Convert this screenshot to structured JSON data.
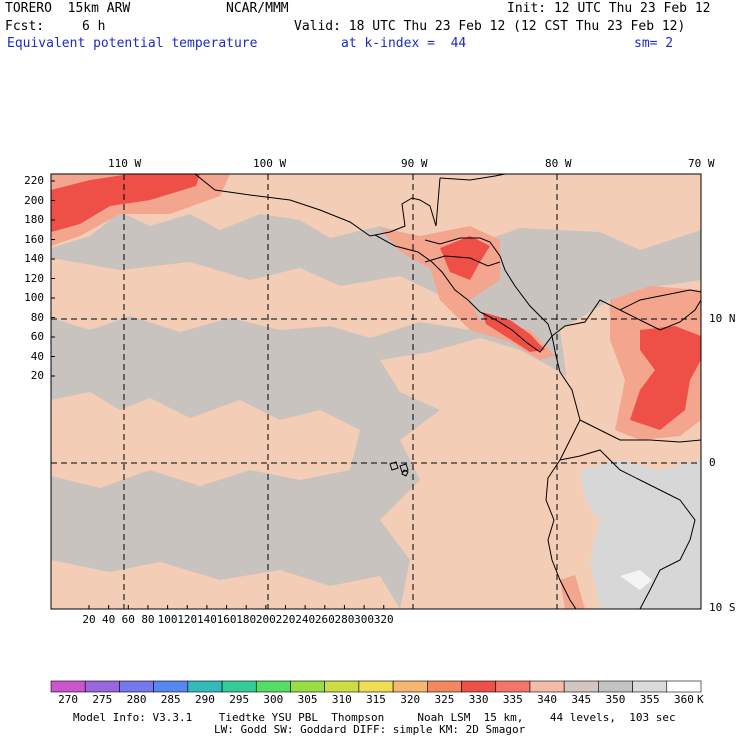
{
  "header": {
    "model": "TORERO  15km ARW",
    "center": "NCAR/MMM",
    "init": "Init: 12 UTC Thu 23 Feb 12",
    "fcst_label": "Fcst:",
    "fcst_value": "6 h",
    "valid": "Valid: 18 UTC Thu 23 Feb 12 (12 CST Thu 23 Feb 12)",
    "field": "Equivalent potential temperature",
    "level": "at k-index =  44",
    "smooth": "sm= 2"
  },
  "map": {
    "lon_labels": [
      "110 W",
      "100 W",
      "90 W",
      "80 W",
      "70 W"
    ],
    "lat_labels": [
      "10 N",
      "0",
      "10 S"
    ],
    "y_ticks": [
      "220",
      "200",
      "180",
      "160",
      "140",
      "120",
      "100",
      "80",
      "60",
      "40",
      "20"
    ],
    "x_ticks": [
      "20",
      "40",
      "60",
      "80",
      "100",
      "120",
      "140",
      "160",
      "180",
      "200",
      "220",
      "240",
      "260",
      "280",
      "300",
      "320"
    ]
  },
  "legend": {
    "unit": "K",
    "values": [
      "270",
      "275",
      "280",
      "285",
      "290",
      "295",
      "300",
      "305",
      "310",
      "315",
      "320",
      "325",
      "330",
      "335",
      "340",
      "345",
      "350",
      "355",
      "360"
    ],
    "colors": [
      "#cc55cc",
      "#9966dd",
      "#7777ee",
      "#5588ee",
      "#33bbbb",
      "#33cc99",
      "#55dd66",
      "#99dd44",
      "#ccdd44",
      "#eedd55",
      "#f6b870",
      "#f28860",
      "#ee5048",
      "#f2776a",
      "#f3bba8",
      "#d2c6c0",
      "#c3c3c3",
      "#dadada",
      "#ffffff"
    ]
  },
  "footer": {
    "line1": "Model Info: V3.3.1    Tiedtke YSU PBL  Thompson     Noah LSM  15 km,    44 levels,  103 sec",
    "line2": "LW: Godd SW: Goddard DIFF: simple KM: 2D Smagor"
  },
  "colors": {
    "title_blue": "#1b2bc8",
    "grey_field": "#c9c3c0",
    "peach_field": "#f3cdb5",
    "salmon": "#f3a58e",
    "red": "#ee5048",
    "light_grey": "#d7d7d7"
  }
}
